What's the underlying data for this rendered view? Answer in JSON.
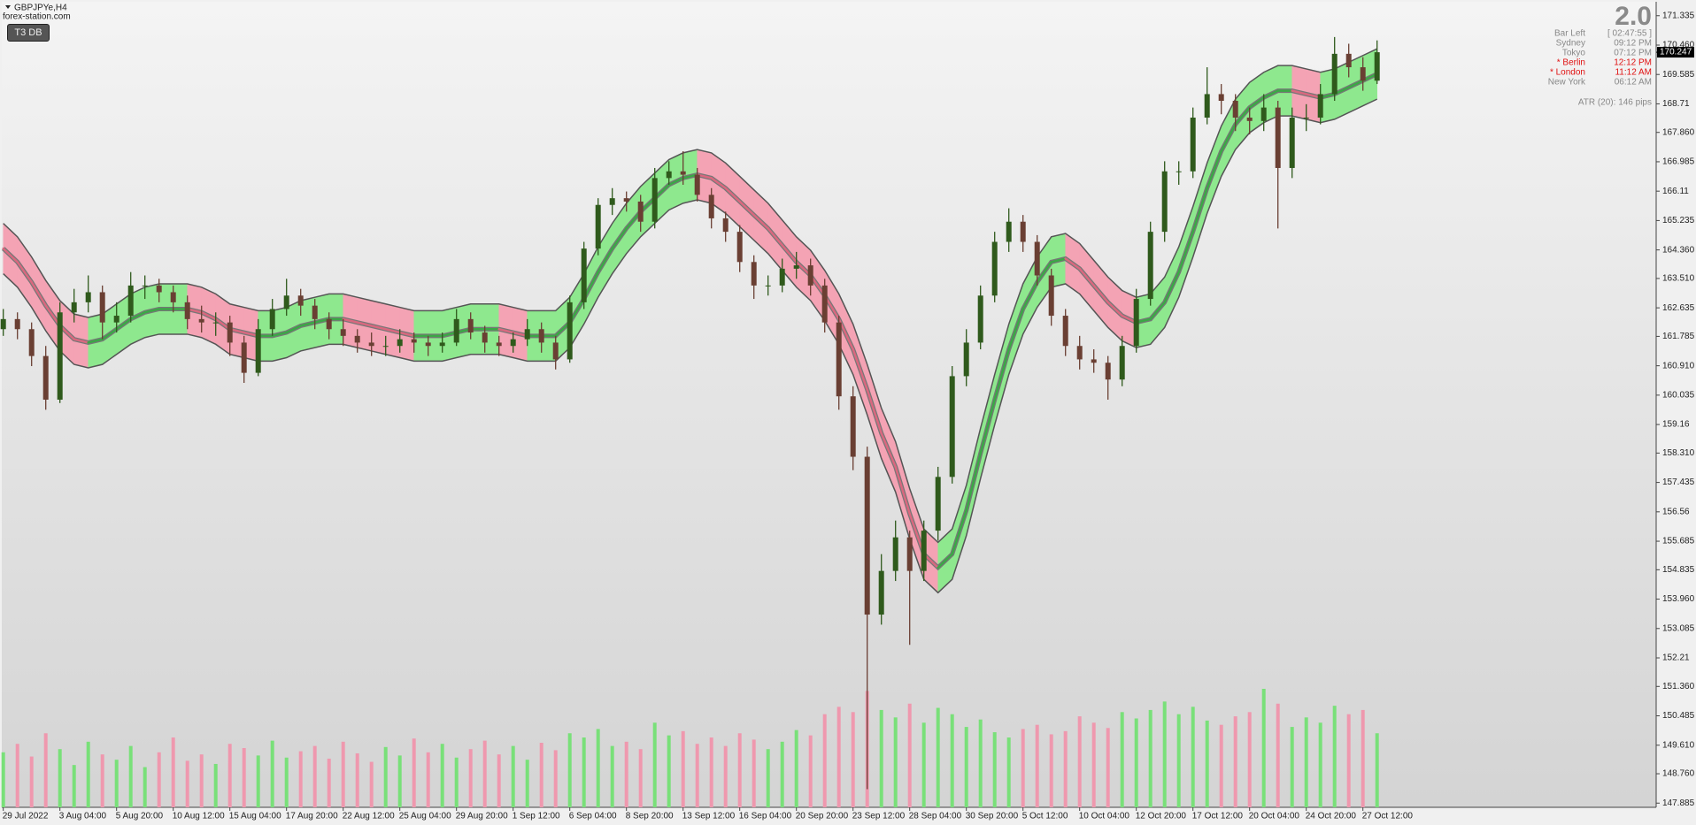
{
  "chart_data": {
    "type": "candlestick",
    "ylim": [
      147.76,
      171.75
    ],
    "yticks": [
      171.335,
      {
        "value": 170.46,
        "label": "170.460"
      },
      169.585,
      168.71,
      {
        "value": 167.86,
        "label": "167.860"
      },
      166.985,
      166.11,
      165.235,
      {
        "value": 164.36,
        "label": "164.360"
      },
      {
        "value": 163.51,
        "label": "163.510"
      },
      162.635,
      161.785,
      {
        "value": 160.91,
        "label": "160.910"
      },
      160.035,
      159.16,
      {
        "value": 158.31,
        "label": "158.310"
      },
      157.435,
      156.56,
      155.685,
      154.835,
      {
        "value": 153.96,
        "label": "153.960"
      },
      153.085,
      152.21,
      {
        "value": 151.36,
        "label": "151.360"
      },
      150.485,
      {
        "value": 149.61,
        "label": "149.610"
      },
      {
        "value": 148.76,
        "label": "148.760"
      },
      147.885
    ],
    "categories": [
      "29 Jul 2022",
      null,
      null,
      null,
      "3 Aug 04:00",
      null,
      null,
      null,
      "5 Aug 20:00",
      null,
      null,
      null,
      "10 Aug 12:00",
      null,
      null,
      null,
      "15 Aug 04:00",
      null,
      null,
      null,
      "17 Aug 20:00",
      null,
      null,
      null,
      "22 Aug 12:00",
      null,
      null,
      null,
      "25 Aug 04:00",
      null,
      null,
      null,
      "29 Aug 20:00",
      null,
      null,
      null,
      "1 Sep 12:00",
      null,
      null,
      null,
      "6 Sep 04:00",
      null,
      null,
      null,
      "8 Sep 20:00",
      null,
      null,
      null,
      "13 Sep 12:00",
      null,
      null,
      null,
      "16 Sep 04:00",
      null,
      null,
      null,
      "20 Sep 20:00",
      null,
      null,
      null,
      "23 Sep 12:00",
      null,
      null,
      null,
      "28 Sep 04:00",
      null,
      null,
      null,
      "30 Sep 20:00",
      null,
      null,
      null,
      "5 Oct 12:00",
      null,
      null,
      null,
      "10 Oct 04:00",
      null,
      null,
      null,
      "12 Oct 20:00",
      null,
      null,
      null,
      "17 Oct 12:00",
      null,
      null,
      null,
      "20 Oct 04:00",
      null,
      null,
      null,
      "24 Oct 20:00",
      null,
      null,
      null,
      "27 Oct 12:00",
      null
    ],
    "ohlc": [
      [
        162.0,
        162.6,
        161.8,
        162.3
      ],
      [
        162.3,
        162.5,
        161.7,
        162.0
      ],
      [
        162.0,
        162.2,
        160.9,
        161.2
      ],
      [
        161.2,
        161.5,
        159.6,
        159.9
      ],
      [
        159.9,
        162.8,
        159.8,
        162.5
      ],
      [
        162.5,
        163.2,
        162.2,
        162.8
      ],
      [
        162.8,
        163.6,
        162.5,
        163.1
      ],
      [
        163.1,
        163.3,
        161.7,
        162.2
      ],
      [
        162.2,
        162.8,
        161.9,
        162.4
      ],
      [
        162.4,
        163.7,
        162.2,
        163.3
      ],
      [
        163.3,
        163.6,
        162.9,
        163.3
      ],
      [
        163.3,
        163.5,
        162.8,
        163.1
      ],
      [
        163.1,
        163.3,
        162.5,
        162.8
      ],
      [
        162.8,
        163.0,
        162.0,
        162.3
      ],
      [
        162.3,
        162.7,
        161.9,
        162.2
      ],
      [
        162.2,
        162.5,
        161.8,
        162.2
      ],
      [
        162.2,
        162.4,
        161.2,
        161.6
      ],
      [
        161.6,
        161.8,
        160.4,
        160.7
      ],
      [
        160.7,
        162.3,
        160.6,
        162.0
      ],
      [
        162.0,
        162.9,
        161.8,
        162.6
      ],
      [
        162.6,
        163.5,
        162.4,
        163.0
      ],
      [
        163.0,
        163.2,
        162.4,
        162.7
      ],
      [
        162.7,
        162.9,
        162.0,
        162.3
      ],
      [
        162.3,
        162.5,
        161.7,
        162.0
      ],
      [
        162.0,
        162.3,
        161.5,
        161.8
      ],
      [
        161.8,
        162.0,
        161.3,
        161.6
      ],
      [
        161.6,
        161.9,
        161.2,
        161.5
      ],
      [
        161.5,
        161.8,
        161.2,
        161.5
      ],
      [
        161.5,
        162.0,
        161.3,
        161.7
      ],
      [
        161.7,
        161.9,
        161.3,
        161.6
      ],
      [
        161.6,
        161.8,
        161.2,
        161.5
      ],
      [
        161.5,
        161.9,
        161.3,
        161.6
      ],
      [
        161.6,
        162.6,
        161.5,
        162.3
      ],
      [
        162.3,
        162.5,
        161.7,
        161.9
      ],
      [
        161.9,
        162.1,
        161.3,
        161.6
      ],
      [
        161.6,
        161.8,
        161.2,
        161.5
      ],
      [
        161.5,
        161.9,
        161.3,
        161.7
      ],
      [
        161.7,
        162.3,
        161.5,
        162.0
      ],
      [
        162.0,
        162.2,
        161.3,
        161.6
      ],
      [
        161.6,
        161.8,
        160.8,
        161.1
      ],
      [
        161.1,
        163.0,
        161.0,
        162.8
      ],
      [
        162.8,
        164.6,
        162.6,
        164.4
      ],
      [
        164.4,
        165.9,
        164.2,
        165.7
      ],
      [
        165.7,
        166.2,
        165.4,
        165.9
      ],
      [
        165.9,
        166.1,
        165.5,
        165.8
      ],
      [
        165.8,
        166.0,
        164.9,
        165.2
      ],
      [
        165.2,
        166.8,
        165.0,
        166.5
      ],
      [
        166.5,
        167.0,
        166.3,
        166.7
      ],
      [
        166.7,
        167.3,
        166.3,
        166.6
      ],
      [
        166.6,
        166.8,
        165.8,
        166.0
      ],
      [
        166.0,
        166.2,
        165.0,
        165.3
      ],
      [
        165.3,
        165.5,
        164.6,
        164.9
      ],
      [
        164.9,
        165.1,
        163.7,
        164.0
      ],
      [
        164.0,
        164.2,
        162.9,
        163.3
      ],
      [
        163.3,
        163.6,
        163.0,
        163.3
      ],
      [
        163.3,
        164.1,
        163.1,
        163.8
      ],
      [
        163.8,
        164.3,
        163.5,
        163.9
      ],
      [
        163.9,
        164.1,
        163.0,
        163.3
      ],
      [
        163.3,
        163.5,
        161.9,
        162.2
      ],
      [
        162.2,
        162.4,
        159.6,
        160.0
      ],
      [
        160.0,
        160.3,
        157.8,
        158.2
      ],
      [
        158.2,
        158.5,
        148.3,
        153.5
      ],
      [
        153.5,
        155.3,
        153.2,
        154.8
      ],
      [
        154.8,
        156.3,
        154.5,
        155.8
      ],
      [
        155.8,
        156.0,
        152.6,
        154.8
      ],
      [
        154.8,
        156.3,
        154.5,
        156.0
      ],
      [
        156.0,
        157.9,
        155.7,
        157.6
      ],
      [
        157.6,
        160.9,
        157.4,
        160.6
      ],
      [
        160.6,
        162.0,
        160.3,
        161.6
      ],
      [
        161.6,
        163.3,
        161.4,
        163.0
      ],
      [
        163.0,
        164.9,
        162.8,
        164.6
      ],
      [
        164.6,
        165.6,
        164.3,
        165.2
      ],
      [
        165.2,
        165.4,
        164.3,
        164.6
      ],
      [
        164.6,
        164.8,
        163.3,
        163.6
      ],
      [
        163.6,
        163.8,
        162.1,
        162.4
      ],
      [
        162.4,
        162.6,
        161.2,
        161.5
      ],
      [
        161.5,
        161.8,
        160.8,
        161.1
      ],
      [
        161.1,
        161.4,
        160.7,
        161.0
      ],
      [
        161.0,
        161.2,
        159.9,
        160.5
      ],
      [
        160.5,
        161.8,
        160.3,
        161.5
      ],
      [
        161.5,
        163.2,
        161.3,
        162.9
      ],
      [
        162.9,
        165.2,
        162.7,
        164.9
      ],
      [
        164.9,
        167.0,
        164.6,
        166.7
      ],
      [
        166.7,
        167.0,
        166.3,
        166.7
      ],
      [
        166.7,
        168.6,
        166.5,
        168.3
      ],
      [
        168.3,
        169.8,
        168.1,
        169.0
      ],
      [
        169.0,
        169.3,
        168.4,
        168.8
      ],
      [
        168.8,
        169.0,
        167.9,
        168.3
      ],
      [
        168.3,
        168.6,
        167.8,
        168.2
      ],
      [
        168.2,
        169.0,
        167.9,
        168.6
      ],
      [
        168.6,
        168.8,
        165.0,
        166.8
      ],
      [
        166.8,
        168.6,
        166.5,
        168.3
      ],
      [
        168.3,
        168.7,
        167.9,
        168.3
      ],
      [
        168.3,
        169.3,
        168.1,
        169.0
      ],
      [
        169.0,
        170.7,
        168.8,
        170.2
      ],
      [
        170.2,
        170.5,
        169.5,
        169.8
      ],
      [
        169.8,
        170.1,
        169.1,
        169.4
      ],
      [
        169.4,
        170.6,
        169.3,
        170.247
      ]
    ],
    "t3": [
      164.4,
      164.0,
      163.4,
      162.7,
      162.1,
      161.7,
      161.6,
      161.7,
      162.0,
      162.3,
      162.5,
      162.6,
      162.6,
      162.6,
      162.5,
      162.3,
      162.0,
      161.9,
      161.8,
      161.8,
      161.9,
      162.1,
      162.2,
      162.3,
      162.3,
      162.2,
      162.1,
      162.0,
      161.9,
      161.8,
      161.8,
      161.8,
      161.9,
      162.0,
      162.0,
      162.0,
      161.9,
      161.8,
      161.8,
      161.8,
      162.2,
      162.9,
      163.7,
      164.4,
      165.0,
      165.5,
      165.9,
      166.3,
      166.5,
      166.6,
      166.5,
      166.2,
      165.8,
      165.4,
      165.0,
      164.5,
      164.0,
      163.6,
      163.0,
      162.3,
      161.4,
      160.2,
      158.9,
      157.9,
      156.5,
      155.3,
      154.9,
      155.3,
      156.6,
      158.3,
      159.9,
      161.4,
      162.6,
      163.4,
      164.0,
      164.1,
      163.8,
      163.3,
      162.8,
      162.4,
      162.2,
      162.3,
      162.8,
      163.7,
      164.9,
      166.2,
      167.3,
      168.1,
      168.6,
      168.9,
      169.1,
      169.1,
      169.0,
      168.9,
      169.0,
      169.2,
      169.4,
      169.6
    ],
    "band": 0.75,
    "volumes": [
      52,
      60,
      48,
      70,
      55,
      40,
      62,
      50,
      45,
      58,
      38,
      52,
      66,
      44,
      50,
      41,
      60,
      56,
      49,
      63,
      47,
      53,
      58,
      46,
      62,
      51,
      43,
      57,
      49,
      65,
      52,
      60,
      47,
      55,
      63,
      50,
      58,
      45,
      61,
      54,
      70,
      66,
      74,
      58,
      62,
      55,
      80,
      68,
      72,
      60,
      66,
      58,
      70,
      64,
      55,
      62,
      73,
      68,
      88,
      95,
      90,
      110,
      92,
      85,
      98,
      80,
      94,
      88,
      76,
      83,
      71,
      66,
      74,
      78,
      69,
      72,
      86,
      80,
      75,
      90,
      84,
      92,
      100,
      88,
      95,
      82,
      78,
      86,
      90,
      112,
      98,
      76,
      85,
      80,
      96,
      88,
      92,
      70
    ],
    "last_price": 170.247,
    "colors": {
      "bull": "#2f5a1c",
      "bear": "#6a3f33",
      "band_up": "#8ee88e",
      "band_down": "#f4a3b4",
      "line_up": "#3aa845",
      "line_down": "#d9687f",
      "vol_up": "#79e079",
      "vol_down": "#ef98ae",
      "outline": "#555555"
    }
  },
  "overlay": {
    "symbol": "GBPJPYe,H4",
    "site": "forex-station.com",
    "button": "T3 DB",
    "version": "2.0",
    "clock": [
      {
        "label": "Bar Left",
        "time": "[ 02:47:55 ]",
        "color": "#888888"
      },
      {
        "label": "Sydney",
        "time": "09:12 PM",
        "color": "#888888"
      },
      {
        "label": "Tokyo",
        "time": "07:12 PM",
        "color": "#888888"
      },
      {
        "label": "* Berlin",
        "time": "12:12 PM",
        "color": "#e01010"
      },
      {
        "label": "* London",
        "time": "11:12 AM",
        "color": "#e01010"
      },
      {
        "label": "New York",
        "time": "06:12 AM",
        "color": "#888888"
      }
    ],
    "atr": "ATR (20): 146 pips"
  }
}
